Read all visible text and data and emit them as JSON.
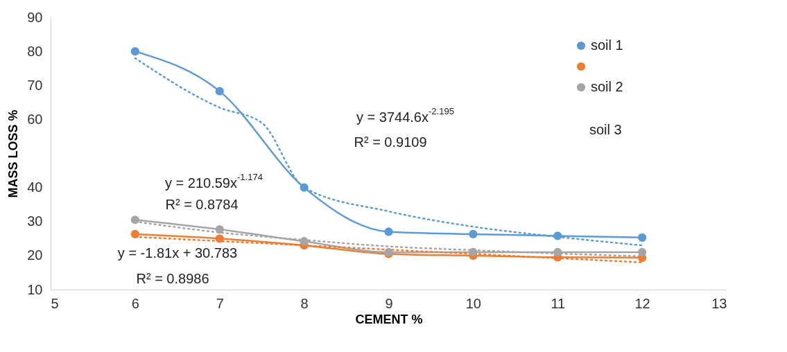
{
  "chart_data": {
    "type": "line",
    "xlabel": "CEMENT %",
    "ylabel": "MASS LOSS %",
    "xlim": [
      5,
      13
    ],
    "xticks": [
      5,
      6,
      7,
      8,
      9,
      10,
      11,
      12,
      13
    ],
    "ylim": [
      10,
      90
    ],
    "yticks": [
      10,
      20,
      30,
      40,
      60,
      70,
      80,
      90
    ],
    "grid": false,
    "legend": "top right",
    "marker": "circle",
    "line_style": "solid",
    "series": [
      {
        "name": "soil 1",
        "color": "#5b9bd5",
        "x": [
          6,
          7,
          8,
          9,
          10,
          11,
          12
        ],
        "values": [
          80,
          68.3,
          40,
          27,
          26.3,
          25.8,
          25.3
        ]
      },
      {
        "color": "#ed7d31",
        "x": [
          6,
          7,
          8,
          9,
          10,
          11,
          12
        ],
        "values": [
          26.3,
          25,
          23,
          20.5,
          20,
          19.5,
          19.4
        ]
      },
      {
        "name": "soil 2",
        "color": "#a5a5a5",
        "x": [
          6,
          7,
          8,
          9,
          10,
          11,
          12
        ],
        "values": [
          30.5,
          27.7,
          24.2,
          21,
          21,
          21,
          21
        ]
      },
      {
        "type": "line",
        "color": "#5b9bd5",
        "line_style": "dotted",
        "marker": "none",
        "x": [
          6,
          7,
          7.5,
          8,
          9,
          10,
          11,
          12
        ],
        "values": [
          78,
          63.5,
          59,
          40,
          33,
          28.5,
          25.5,
          23
        ]
      },
      {
        "type": "line",
        "color": "#ed7d31",
        "line_style": "dotted",
        "marker": "none",
        "x": [
          6,
          12
        ],
        "values": [
          25.5,
          18
        ]
      },
      {
        "type": "line",
        "color": "#a5a5a5",
        "line_style": "dotted",
        "marker": "none",
        "x": [
          6,
          7,
          8,
          9,
          10,
          11,
          12
        ],
        "values": [
          30,
          26.8,
          24.6,
          22.7,
          21.6,
          20.6,
          19.8
        ]
      }
    ],
    "annotations": [
      "y = 3744.6x$^{-2.195}$",
      "R² = 0.9109",
      "y = 210.59x$^{-1.174}$",
      "R² = 0.8784",
      "y = -1.81x + 30.783",
      "R² = 0.8986",
      "soil 3"
    ]
  }
}
